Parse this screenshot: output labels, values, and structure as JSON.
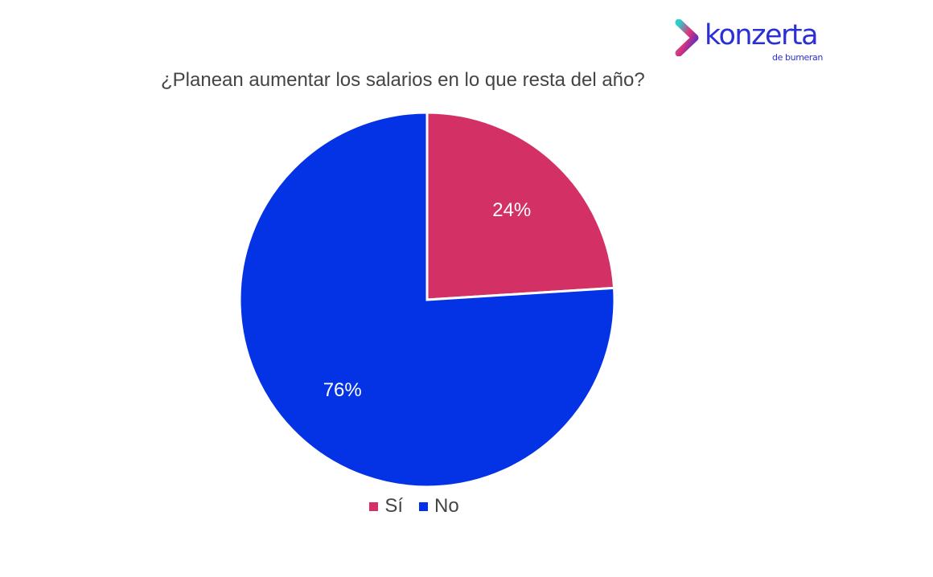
{
  "logo": {
    "name": "konzerta",
    "tagline": "de bumeran",
    "color_main": "#2b2fd6",
    "color_accent": "#e0317a",
    "color_teal": "#2ad1c9"
  },
  "chart_data": {
    "type": "pie",
    "title": "¿Planean aumentar los salarios en lo que resta del año?",
    "categories": [
      "Sí",
      "No"
    ],
    "values": [
      24,
      76
    ],
    "labels": [
      "24%",
      "76%"
    ],
    "colors": [
      "#d33166",
      "#0433e6"
    ],
    "legend_position": "bottom",
    "start_angle": "12 o'clock, clockwise"
  }
}
